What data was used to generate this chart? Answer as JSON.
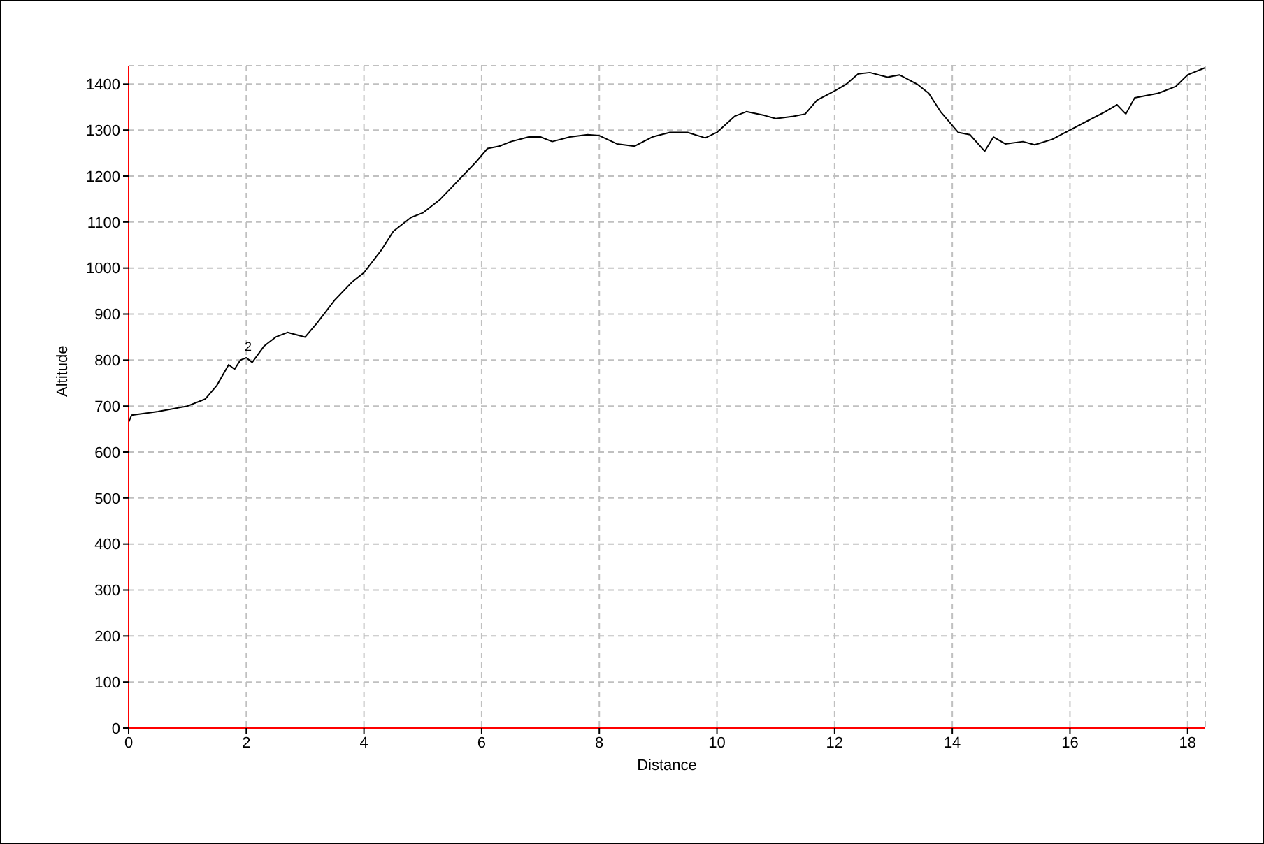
{
  "chart_data": {
    "type": "line",
    "xlabel": "Distance",
    "ylabel": "Altitude",
    "xlim": [
      0,
      18.3
    ],
    "xticks": [
      0,
      2,
      4,
      6,
      8,
      10,
      12,
      14,
      16,
      18
    ],
    "ylim": [
      0,
      1440
    ],
    "yticks": [
      0,
      100,
      200,
      300,
      400,
      500,
      600,
      700,
      800,
      900,
      1000,
      1100,
      1200,
      1300,
      1400
    ],
    "grid": true,
    "legend": false,
    "marker": "none",
    "line_style": "solid",
    "annotations": [
      "2"
    ],
    "series": [
      {
        "color": "#000000",
        "x": [
          0,
          0.05,
          0.5,
          1.0,
          1.3,
          1.5,
          1.7,
          1.8,
          1.9,
          2.0,
          2.1,
          2.3,
          2.5,
          2.7,
          3.0,
          3.2,
          3.5,
          3.8,
          4.0,
          4.3,
          4.5,
          4.8,
          5.0,
          5.3,
          5.6,
          5.9,
          6.1,
          6.3,
          6.5,
          6.8,
          7.0,
          7.2,
          7.5,
          7.8,
          8.0,
          8.3,
          8.6,
          8.9,
          9.2,
          9.5,
          9.8,
          10.0,
          10.3,
          10.5,
          10.8,
          11.0,
          11.3,
          11.5,
          11.7,
          12.0,
          12.2,
          12.4,
          12.6,
          12.9,
          13.1,
          13.4,
          13.6,
          13.8,
          14.1,
          14.3,
          14.55,
          14.7,
          14.9,
          15.2,
          15.4,
          15.7,
          16.0,
          16.3,
          16.6,
          16.8,
          16.95,
          17.1,
          17.3,
          17.5,
          17.8,
          18.0,
          18.29
        ],
        "values": [
          665,
          680,
          688,
          700,
          715,
          745,
          790,
          780,
          800,
          805,
          795,
          830,
          850,
          860,
          850,
          880,
          930,
          970,
          990,
          1040,
          1080,
          1110,
          1120,
          1150,
          1190,
          1230,
          1260,
          1265,
          1275,
          1285,
          1285,
          1275,
          1285,
          1290,
          1288,
          1270,
          1265,
          1285,
          1295,
          1295,
          1283,
          1295,
          1330,
          1340,
          1332,
          1325,
          1330,
          1335,
          1365,
          1385,
          1400,
          1422,
          1425,
          1415,
          1420,
          1400,
          1380,
          1340,
          1295,
          1290,
          1254,
          1285,
          1270,
          1275,
          1268,
          1280,
          1300,
          1320,
          1340,
          1355,
          1335,
          1370,
          1375,
          1380,
          1395,
          1420,
          1435
        ]
      }
    ]
  }
}
